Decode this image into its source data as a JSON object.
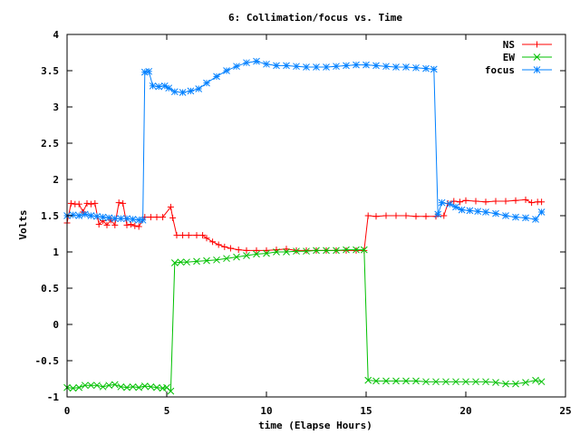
{
  "chart_data": {
    "type": "line",
    "title": "6: Collimation/focus vs. Time",
    "xlabel": "time (Elapse Hours)",
    "ylabel": "Volts",
    "xlim": [
      0,
      25
    ],
    "ylim": [
      -1,
      4
    ],
    "xticks": [
      0,
      5,
      10,
      15,
      20,
      25
    ],
    "xtick_labels": [
      "0",
      "5",
      "10",
      "15",
      "20",
      "25"
    ],
    "yticks": [
      -1,
      -0.5,
      0,
      0.5,
      1,
      1.5,
      2,
      2.5,
      3,
      3.5,
      4
    ],
    "ytick_labels": [
      "-1",
      "-0.5",
      "0",
      "0.5",
      "1",
      "1.5",
      "2",
      "2.5",
      "3",
      "3.5",
      "4"
    ],
    "grid": false,
    "legend_position": "top-right",
    "series": [
      {
        "name": "NS",
        "color": "#ff0000",
        "marker": "plus",
        "points": [
          [
            0,
            1.4
          ],
          [
            0.2,
            1.67
          ],
          [
            0.4,
            1.66
          ],
          [
            0.6,
            1.66
          ],
          [
            0.8,
            1.55
          ],
          [
            1.0,
            1.67
          ],
          [
            1.2,
            1.66
          ],
          [
            1.4,
            1.67
          ],
          [
            1.6,
            1.38
          ],
          [
            1.8,
            1.43
          ],
          [
            2.0,
            1.37
          ],
          [
            2.2,
            1.44
          ],
          [
            2.4,
            1.37
          ],
          [
            2.6,
            1.68
          ],
          [
            2.8,
            1.67
          ],
          [
            3.0,
            1.37
          ],
          [
            3.2,
            1.38
          ],
          [
            3.4,
            1.36
          ],
          [
            3.6,
            1.35
          ],
          [
            3.9,
            1.48
          ],
          [
            4.2,
            1.48
          ],
          [
            4.5,
            1.48
          ],
          [
            4.8,
            1.48
          ],
          [
            5.2,
            1.62
          ],
          [
            5.3,
            1.47
          ],
          [
            5.5,
            1.23
          ],
          [
            5.8,
            1.23
          ],
          [
            6.1,
            1.23
          ],
          [
            6.5,
            1.23
          ],
          [
            6.8,
            1.23
          ],
          [
            7.0,
            1.19
          ],
          [
            7.3,
            1.14
          ],
          [
            7.6,
            1.1
          ],
          [
            7.9,
            1.07
          ],
          [
            8.2,
            1.05
          ],
          [
            8.6,
            1.03
          ],
          [
            9.0,
            1.02
          ],
          [
            9.5,
            1.02
          ],
          [
            10.0,
            1.02
          ],
          [
            10.5,
            1.03
          ],
          [
            11.0,
            1.04
          ],
          [
            11.5,
            1.02
          ],
          [
            12.0,
            1.02
          ],
          [
            12.5,
            1.02
          ],
          [
            13.0,
            1.02
          ],
          [
            13.5,
            1.02
          ],
          [
            14.0,
            1.02
          ],
          [
            14.5,
            1.02
          ],
          [
            14.9,
            1.02
          ],
          [
            15.1,
            1.5
          ],
          [
            15.5,
            1.49
          ],
          [
            16.0,
            1.5
          ],
          [
            16.5,
            1.5
          ],
          [
            17.0,
            1.5
          ],
          [
            17.5,
            1.49
          ],
          [
            18.0,
            1.49
          ],
          [
            18.5,
            1.49
          ],
          [
            18.9,
            1.5
          ],
          [
            19.1,
            1.67
          ],
          [
            19.4,
            1.7
          ],
          [
            19.7,
            1.69
          ],
          [
            20.0,
            1.71
          ],
          [
            20.5,
            1.7
          ],
          [
            21.0,
            1.69
          ],
          [
            21.5,
            1.7
          ],
          [
            22.0,
            1.7
          ],
          [
            22.5,
            1.71
          ],
          [
            23.0,
            1.72
          ],
          [
            23.3,
            1.68
          ],
          [
            23.6,
            1.69
          ],
          [
            23.8,
            1.69
          ]
        ]
      },
      {
        "name": "EW",
        "color": "#00c000",
        "marker": "cross",
        "points": [
          [
            0,
            -0.87
          ],
          [
            0.3,
            -0.88
          ],
          [
            0.6,
            -0.87
          ],
          [
            0.9,
            -0.84
          ],
          [
            1.2,
            -0.84
          ],
          [
            1.5,
            -0.84
          ],
          [
            1.8,
            -0.86
          ],
          [
            2.1,
            -0.84
          ],
          [
            2.4,
            -0.83
          ],
          [
            2.7,
            -0.86
          ],
          [
            3.0,
            -0.87
          ],
          [
            3.3,
            -0.86
          ],
          [
            3.6,
            -0.87
          ],
          [
            3.9,
            -0.85
          ],
          [
            4.2,
            -0.86
          ],
          [
            4.5,
            -0.87
          ],
          [
            4.8,
            -0.88
          ],
          [
            5.0,
            -0.87
          ],
          [
            5.2,
            -0.92
          ],
          [
            5.4,
            0.85
          ],
          [
            5.7,
            0.86
          ],
          [
            6.0,
            0.86
          ],
          [
            6.5,
            0.87
          ],
          [
            7.0,
            0.88
          ],
          [
            7.5,
            0.89
          ],
          [
            8.0,
            0.91
          ],
          [
            8.5,
            0.93
          ],
          [
            9.0,
            0.95
          ],
          [
            9.5,
            0.97
          ],
          [
            10.0,
            0.98
          ],
          [
            10.5,
            1.0
          ],
          [
            11.0,
            1.0
          ],
          [
            11.5,
            1.01
          ],
          [
            12.0,
            1.01
          ],
          [
            12.5,
            1.02
          ],
          [
            13.0,
            1.02
          ],
          [
            13.5,
            1.02
          ],
          [
            14.0,
            1.03
          ],
          [
            14.5,
            1.03
          ],
          [
            14.9,
            1.03
          ],
          [
            15.1,
            -0.77
          ],
          [
            15.5,
            -0.78
          ],
          [
            16.0,
            -0.78
          ],
          [
            16.5,
            -0.78
          ],
          [
            17.0,
            -0.78
          ],
          [
            17.5,
            -0.78
          ],
          [
            18.0,
            -0.79
          ],
          [
            18.5,
            -0.79
          ],
          [
            19.0,
            -0.79
          ],
          [
            19.5,
            -0.79
          ],
          [
            20.0,
            -0.79
          ],
          [
            20.5,
            -0.79
          ],
          [
            21.0,
            -0.79
          ],
          [
            21.5,
            -0.8
          ],
          [
            22.0,
            -0.82
          ],
          [
            22.5,
            -0.82
          ],
          [
            23.0,
            -0.8
          ],
          [
            23.5,
            -0.77
          ],
          [
            23.8,
            -0.79
          ]
        ]
      },
      {
        "name": "focus",
        "color": "#0080ff",
        "marker": "star",
        "points": [
          [
            0,
            1.5
          ],
          [
            0.3,
            1.51
          ],
          [
            0.6,
            1.5
          ],
          [
            0.9,
            1.52
          ],
          [
            1.2,
            1.5
          ],
          [
            1.5,
            1.49
          ],
          [
            1.8,
            1.48
          ],
          [
            2.1,
            1.47
          ],
          [
            2.4,
            1.46
          ],
          [
            2.7,
            1.46
          ],
          [
            3.0,
            1.46
          ],
          [
            3.3,
            1.45
          ],
          [
            3.6,
            1.44
          ],
          [
            3.8,
            1.44
          ],
          [
            3.9,
            3.48
          ],
          [
            4.1,
            3.49
          ],
          [
            4.3,
            3.29
          ],
          [
            4.6,
            3.28
          ],
          [
            4.9,
            3.29
          ],
          [
            5.1,
            3.26
          ],
          [
            5.4,
            3.21
          ],
          [
            5.8,
            3.2
          ],
          [
            6.2,
            3.22
          ],
          [
            6.6,
            3.25
          ],
          [
            7.0,
            3.33
          ],
          [
            7.5,
            3.42
          ],
          [
            8.0,
            3.5
          ],
          [
            8.5,
            3.56
          ],
          [
            9.0,
            3.61
          ],
          [
            9.5,
            3.63
          ],
          [
            10.0,
            3.59
          ],
          [
            10.5,
            3.57
          ],
          [
            11.0,
            3.57
          ],
          [
            11.5,
            3.56
          ],
          [
            12.0,
            3.55
          ],
          [
            12.5,
            3.55
          ],
          [
            13.0,
            3.55
          ],
          [
            13.5,
            3.56
          ],
          [
            14.0,
            3.57
          ],
          [
            14.5,
            3.58
          ],
          [
            15.0,
            3.58
          ],
          [
            15.5,
            3.57
          ],
          [
            16.0,
            3.56
          ],
          [
            16.5,
            3.55
          ],
          [
            17.0,
            3.55
          ],
          [
            17.5,
            3.54
          ],
          [
            18.0,
            3.53
          ],
          [
            18.4,
            3.52
          ],
          [
            18.6,
            1.52
          ],
          [
            18.8,
            1.68
          ],
          [
            19.2,
            1.66
          ],
          [
            19.5,
            1.62
          ],
          [
            19.8,
            1.58
          ],
          [
            20.2,
            1.57
          ],
          [
            20.6,
            1.56
          ],
          [
            21.0,
            1.55
          ],
          [
            21.5,
            1.53
          ],
          [
            22.0,
            1.5
          ],
          [
            22.5,
            1.48
          ],
          [
            23.0,
            1.47
          ],
          [
            23.5,
            1.45
          ],
          [
            23.8,
            1.55
          ]
        ]
      }
    ]
  }
}
